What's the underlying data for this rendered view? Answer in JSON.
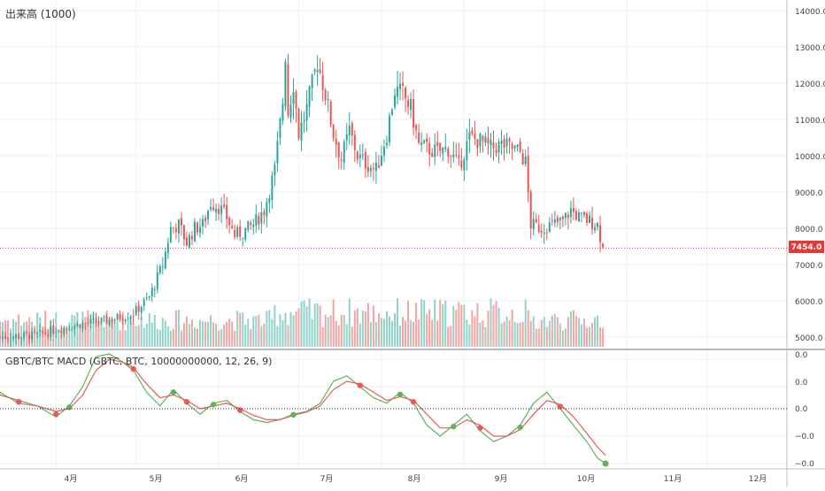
{
  "price_pane": {
    "volume_label": "出来高 (1000)",
    "last_price_label": "7454.0",
    "y_ticks": [
      "14000.0",
      "13000.0",
      "12000.0",
      "11000.0",
      "10000.0",
      "9000.0",
      "8000.0",
      "7000.0",
      "6000.0",
      "5000.0"
    ]
  },
  "macd_pane": {
    "title": "GBTC/BTC MACD (GBTC, BTC, 10000000000, 12, 26, 9)",
    "y_ticks": [
      "0.0",
      "0.0",
      "0.0",
      "−0.0",
      "−0.0"
    ]
  },
  "x_ticks": [
    "4月",
    "5月",
    "6月",
    "7月",
    "8月",
    "9月",
    "10月",
    "11月",
    "12月"
  ],
  "colors": {
    "up": "#26a69a",
    "down": "#ef5350",
    "volume_up": "#8fd3c9",
    "volume_down": "#f4a3a0",
    "macd_line": "#5fb35a",
    "signal_line": "#e85b5b",
    "last_price": "#e53935"
  },
  "chart_data": [
    {
      "type": "candlestick",
      "x_range": [
        "2019-03-11",
        "2019-12-31"
      ],
      "y_range": [
        4800,
        14200
      ],
      "last_price": 7454.0,
      "close_anchors": [
        [
          "2019-03-11",
          5000
        ],
        [
          "2019-03-25",
          5050
        ],
        [
          "2019-04-01",
          5220
        ],
        [
          "2019-04-10",
          5350
        ],
        [
          "2019-04-20",
          5450
        ],
        [
          "2019-04-30",
          5650
        ],
        [
          "2019-05-06",
          6100
        ],
        [
          "2019-05-11",
          7000
        ],
        [
          "2019-05-14",
          8000
        ],
        [
          "2019-05-17",
          8100
        ],
        [
          "2019-05-20",
          7600
        ],
        [
          "2019-05-23",
          8000
        ],
        [
          "2019-05-26",
          8100
        ],
        [
          "2019-05-29",
          8700
        ],
        [
          "2019-06-01",
          8600
        ],
        [
          "2019-06-04",
          8300
        ],
        [
          "2019-06-07",
          7800
        ],
        [
          "2019-06-10",
          7900
        ],
        [
          "2019-06-14",
          8100
        ],
        [
          "2019-06-18",
          8500
        ],
        [
          "2019-06-22",
          9600
        ],
        [
          "2019-06-25",
          11500
        ],
        [
          "2019-06-26",
          12800
        ],
        [
          "2019-06-27",
          11200
        ],
        [
          "2019-06-29",
          12000
        ],
        [
          "2019-07-01",
          10600
        ],
        [
          "2019-07-04",
          11300
        ],
        [
          "2019-07-08",
          12600
        ],
        [
          "2019-07-11",
          11700
        ],
        [
          "2019-07-14",
          10600
        ],
        [
          "2019-07-17",
          9900
        ],
        [
          "2019-07-20",
          10700
        ],
        [
          "2019-07-23",
          10000
        ],
        [
          "2019-07-26",
          9800
        ],
        [
          "2019-07-30",
          9600
        ],
        [
          "2019-08-03",
          10600
        ],
        [
          "2019-08-06",
          11800
        ],
        [
          "2019-08-09",
          11700
        ],
        [
          "2019-08-12",
          11300
        ],
        [
          "2019-08-15",
          10300
        ],
        [
          "2019-08-18",
          10200
        ],
        [
          "2019-08-22",
          10100
        ],
        [
          "2019-08-26",
          10200
        ],
        [
          "2019-08-30",
          9700
        ],
        [
          "2019-09-03",
          10500
        ],
        [
          "2019-09-07",
          10400
        ],
        [
          "2019-09-11",
          10200
        ],
        [
          "2019-09-15",
          10300
        ],
        [
          "2019-09-19",
          10200
        ],
        [
          "2019-09-22",
          10100
        ],
        [
          "2019-09-24",
          9800
        ],
        [
          "2019-09-26",
          8100
        ],
        [
          "2019-09-30",
          8000
        ],
        [
          "2019-10-04",
          8100
        ],
        [
          "2019-10-08",
          8200
        ],
        [
          "2019-10-11",
          8500
        ],
        [
          "2019-10-14",
          8300
        ],
        [
          "2019-10-18",
          8200
        ],
        [
          "2019-10-21",
          8100
        ],
        [
          "2019-10-23",
          7454
        ]
      ],
      "volume_scale_note": "volume bars share the lower region of the price pane"
    },
    {
      "type": "line",
      "x_range": [
        "2019-03-11",
        "2019-12-31"
      ],
      "series": [
        {
          "name": "MACD",
          "points": [
            [
              "2019-03-11",
              0.3
            ],
            [
              "2019-03-18",
              0.1
            ],
            [
              "2019-03-25",
              0.05
            ],
            [
              "2019-04-01",
              -0.15
            ],
            [
              "2019-04-06",
              0.05
            ],
            [
              "2019-04-11",
              0.4
            ],
            [
              "2019-04-16",
              0.95
            ],
            [
              "2019-04-21",
              1.0
            ],
            [
              "2019-04-26",
              0.85
            ],
            [
              "2019-04-30",
              0.7
            ],
            [
              "2019-05-05",
              0.3
            ],
            [
              "2019-05-10",
              0.05
            ],
            [
              "2019-05-15",
              0.35
            ],
            [
              "2019-05-20",
              0.1
            ],
            [
              "2019-05-25",
              -0.1
            ],
            [
              "2019-05-30",
              0.1
            ],
            [
              "2019-06-04",
              0.15
            ],
            [
              "2019-06-09",
              -0.05
            ],
            [
              "2019-06-14",
              -0.2
            ],
            [
              "2019-06-19",
              -0.25
            ],
            [
              "2019-06-24",
              -0.2
            ],
            [
              "2019-06-29",
              -0.1
            ],
            [
              "2019-07-04",
              -0.05
            ],
            [
              "2019-07-09",
              0.1
            ],
            [
              "2019-07-14",
              0.5
            ],
            [
              "2019-07-19",
              0.6
            ],
            [
              "2019-07-24",
              0.4
            ],
            [
              "2019-07-29",
              0.2
            ],
            [
              "2019-08-03",
              0.1
            ],
            [
              "2019-08-08",
              0.3
            ],
            [
              "2019-08-13",
              0.1
            ],
            [
              "2019-08-18",
              -0.3
            ],
            [
              "2019-08-23",
              -0.5
            ],
            [
              "2019-08-28",
              -0.3
            ],
            [
              "2019-09-02",
              -0.1
            ],
            [
              "2019-09-07",
              -0.4
            ],
            [
              "2019-09-12",
              -0.6
            ],
            [
              "2019-09-17",
              -0.5
            ],
            [
              "2019-09-22",
              -0.3
            ],
            [
              "2019-09-27",
              0.1
            ],
            [
              "2019-10-02",
              0.3
            ],
            [
              "2019-10-07",
              0.0
            ],
            [
              "2019-10-12",
              -0.3
            ],
            [
              "2019-10-17",
              -0.6
            ],
            [
              "2019-10-21",
              -0.9
            ],
            [
              "2019-10-24",
              -1.0
            ]
          ]
        },
        {
          "name": "Signal",
          "points": [
            [
              "2019-03-11",
              0.25
            ],
            [
              "2019-03-18",
              0.15
            ],
            [
              "2019-03-25",
              0.05
            ],
            [
              "2019-04-01",
              -0.05
            ],
            [
              "2019-04-06",
              0.0
            ],
            [
              "2019-04-11",
              0.25
            ],
            [
              "2019-04-16",
              0.7
            ],
            [
              "2019-04-21",
              0.9
            ],
            [
              "2019-04-26",
              0.85
            ],
            [
              "2019-04-30",
              0.75
            ],
            [
              "2019-05-05",
              0.45
            ],
            [
              "2019-05-10",
              0.2
            ],
            [
              "2019-05-15",
              0.25
            ],
            [
              "2019-05-20",
              0.15
            ],
            [
              "2019-05-25",
              0.0
            ],
            [
              "2019-05-30",
              0.05
            ],
            [
              "2019-06-04",
              0.1
            ],
            [
              "2019-06-09",
              0.0
            ],
            [
              "2019-06-14",
              -0.12
            ],
            [
              "2019-06-19",
              -0.2
            ],
            [
              "2019-06-24",
              -0.2
            ],
            [
              "2019-06-29",
              -0.12
            ],
            [
              "2019-07-04",
              -0.06
            ],
            [
              "2019-07-09",
              0.05
            ],
            [
              "2019-07-14",
              0.35
            ],
            [
              "2019-07-19",
              0.5
            ],
            [
              "2019-07-24",
              0.45
            ],
            [
              "2019-07-29",
              0.3
            ],
            [
              "2019-08-03",
              0.15
            ],
            [
              "2019-08-08",
              0.22
            ],
            [
              "2019-08-13",
              0.15
            ],
            [
              "2019-08-18",
              -0.1
            ],
            [
              "2019-08-23",
              -0.35
            ],
            [
              "2019-08-28",
              -0.35
            ],
            [
              "2019-09-02",
              -0.2
            ],
            [
              "2019-09-07",
              -0.3
            ],
            [
              "2019-09-12",
              -0.5
            ],
            [
              "2019-09-17",
              -0.5
            ],
            [
              "2019-09-22",
              -0.38
            ],
            [
              "2019-09-27",
              -0.1
            ],
            [
              "2019-10-02",
              0.15
            ],
            [
              "2019-10-07",
              0.08
            ],
            [
              "2019-10-12",
              -0.15
            ],
            [
              "2019-10-17",
              -0.45
            ],
            [
              "2019-10-21",
              -0.7
            ],
            [
              "2019-10-24",
              -0.85
            ]
          ]
        }
      ],
      "zero_line": 0
    }
  ]
}
